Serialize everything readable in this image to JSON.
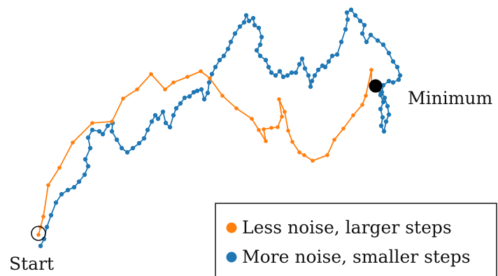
{
  "chart_data": {
    "type": "line",
    "title": "",
    "xlabel": "",
    "ylabel": "",
    "grid": false,
    "legend_position": "bottom-right",
    "annotations": {
      "start": "Start",
      "minimum": "Minimum"
    },
    "series": [
      {
        "name": "Less noise, larger steps",
        "color": "#ff7f0e",
        "points": [
          [
            55,
            336
          ],
          [
            58,
            325
          ],
          [
            62,
            310
          ],
          [
            69,
            265
          ],
          [
            85,
            240
          ],
          [
            104,
            204
          ],
          [
            132,
            176
          ],
          [
            160,
            174
          ],
          [
            176,
            141
          ],
          [
            196,
            128
          ],
          [
            216,
            106
          ],
          [
            236,
            128
          ],
          [
            248,
            118
          ],
          [
            268,
            110
          ],
          [
            287,
            102
          ],
          [
            300,
            112
          ],
          [
            318,
            137
          ],
          [
            338,
            155
          ],
          [
            360,
            170
          ],
          [
            370,
            186
          ],
          [
            380,
            202
          ],
          [
            377,
            185
          ],
          [
            388,
            183
          ],
          [
            397,
            182
          ],
          [
            403,
            167
          ],
          [
            399,
            142
          ],
          [
            407,
            160
          ],
          [
            412,
            187
          ],
          [
            418,
            203
          ],
          [
            428,
            218
          ],
          [
            435,
            222
          ],
          [
            447,
            230
          ],
          [
            468,
            222
          ],
          [
            478,
            200
          ],
          [
            491,
            184
          ],
          [
            505,
            165
          ],
          [
            518,
            150
          ],
          [
            523,
            137
          ],
          [
            531,
            100
          ],
          [
            531,
            125
          ]
        ]
      },
      {
        "name": "More noise, smaller steps",
        "color": "#1f77b4",
        "points": [
          [
            58,
            352
          ],
          [
            63,
            342
          ],
          [
            67,
            325
          ],
          [
            73,
            308
          ],
          [
            80,
            290
          ],
          [
            88,
            278
          ],
          [
            97,
            272
          ],
          [
            106,
            268
          ],
          [
            113,
            260
          ],
          [
            121,
            250
          ],
          [
            126,
            238
          ],
          [
            122,
            228
          ],
          [
            129,
            212
          ],
          [
            126,
            197
          ],
          [
            132,
            186
          ],
          [
            142,
            188
          ],
          [
            147,
            192
          ],
          [
            154,
            180
          ],
          [
            161,
            176
          ],
          [
            160,
            188
          ],
          [
            167,
            200
          ],
          [
            174,
            212
          ],
          [
            182,
            218
          ],
          [
            190,
            212
          ],
          [
            199,
            205
          ],
          [
            206,
            198
          ],
          [
            211,
            186
          ],
          [
            217,
            174
          ],
          [
            222,
            165
          ],
          [
            226,
            170
          ],
          [
            233,
            160
          ],
          [
            237,
            176
          ],
          [
            243,
            182
          ],
          [
            248,
            165
          ],
          [
            252,
            155
          ],
          [
            258,
            148
          ],
          [
            264,
            140
          ],
          [
            271,
            138
          ],
          [
            277,
            132
          ],
          [
            282,
            130
          ],
          [
            288,
            128
          ],
          [
            292,
            142
          ],
          [
            297,
            133
          ],
          [
            299,
            118
          ],
          [
            303,
            106
          ],
          [
            308,
            96
          ],
          [
            314,
            86
          ],
          [
            320,
            80
          ],
          [
            326,
            70
          ],
          [
            330,
            60
          ],
          [
            336,
            48
          ],
          [
            343,
            38
          ],
          [
            349,
            32
          ],
          [
            352,
            22
          ],
          [
            356,
            30
          ],
          [
            362,
            26
          ],
          [
            364,
            36
          ],
          [
            370,
            40
          ],
          [
            374,
            53
          ],
          [
            372,
            64
          ],
          [
            367,
            72
          ],
          [
            372,
            80
          ],
          [
            380,
            86
          ],
          [
            384,
            96
          ],
          [
            388,
            104
          ],
          [
            394,
            108
          ],
          [
            400,
            102
          ],
          [
            405,
            110
          ],
          [
            411,
            108
          ],
          [
            417,
            104
          ],
          [
            423,
            104
          ],
          [
            428,
            92
          ],
          [
            432,
            84
          ],
          [
            436,
            98
          ],
          [
            441,
            108
          ],
          [
            444,
            124
          ],
          [
            446,
            116
          ],
          [
            450,
            108
          ],
          [
            455,
            100
          ],
          [
            461,
            94
          ],
          [
            465,
            96
          ],
          [
            470,
            88
          ],
          [
            475,
            80
          ],
          [
            482,
            78
          ],
          [
            488,
            60
          ],
          [
            494,
            42
          ],
          [
            497,
            28
          ],
          [
            496,
            18
          ],
          [
            502,
            14
          ],
          [
            508,
            22
          ],
          [
            515,
            30
          ],
          [
            521,
            36
          ],
          [
            518,
            48
          ],
          [
            524,
            60
          ],
          [
            530,
            50
          ],
          [
            540,
            58
          ],
          [
            548,
            64
          ],
          [
            556,
            76
          ],
          [
            562,
            88
          ],
          [
            568,
            96
          ],
          [
            572,
            108
          ],
          [
            570,
            114
          ],
          [
            562,
            118
          ],
          [
            556,
            116
          ],
          [
            548,
            122
          ],
          [
            546,
            132
          ],
          [
            550,
            140
          ],
          [
            554,
            152
          ],
          [
            556,
            164
          ],
          [
            552,
            174
          ],
          [
            549,
            188
          ],
          [
            545,
            180
          ],
          [
            547,
            168
          ],
          [
            544,
            156
          ],
          [
            548,
            146
          ],
          [
            544,
            136
          ],
          [
            540,
            126
          ],
          [
            538,
            122
          ]
        ]
      }
    ]
  }
}
